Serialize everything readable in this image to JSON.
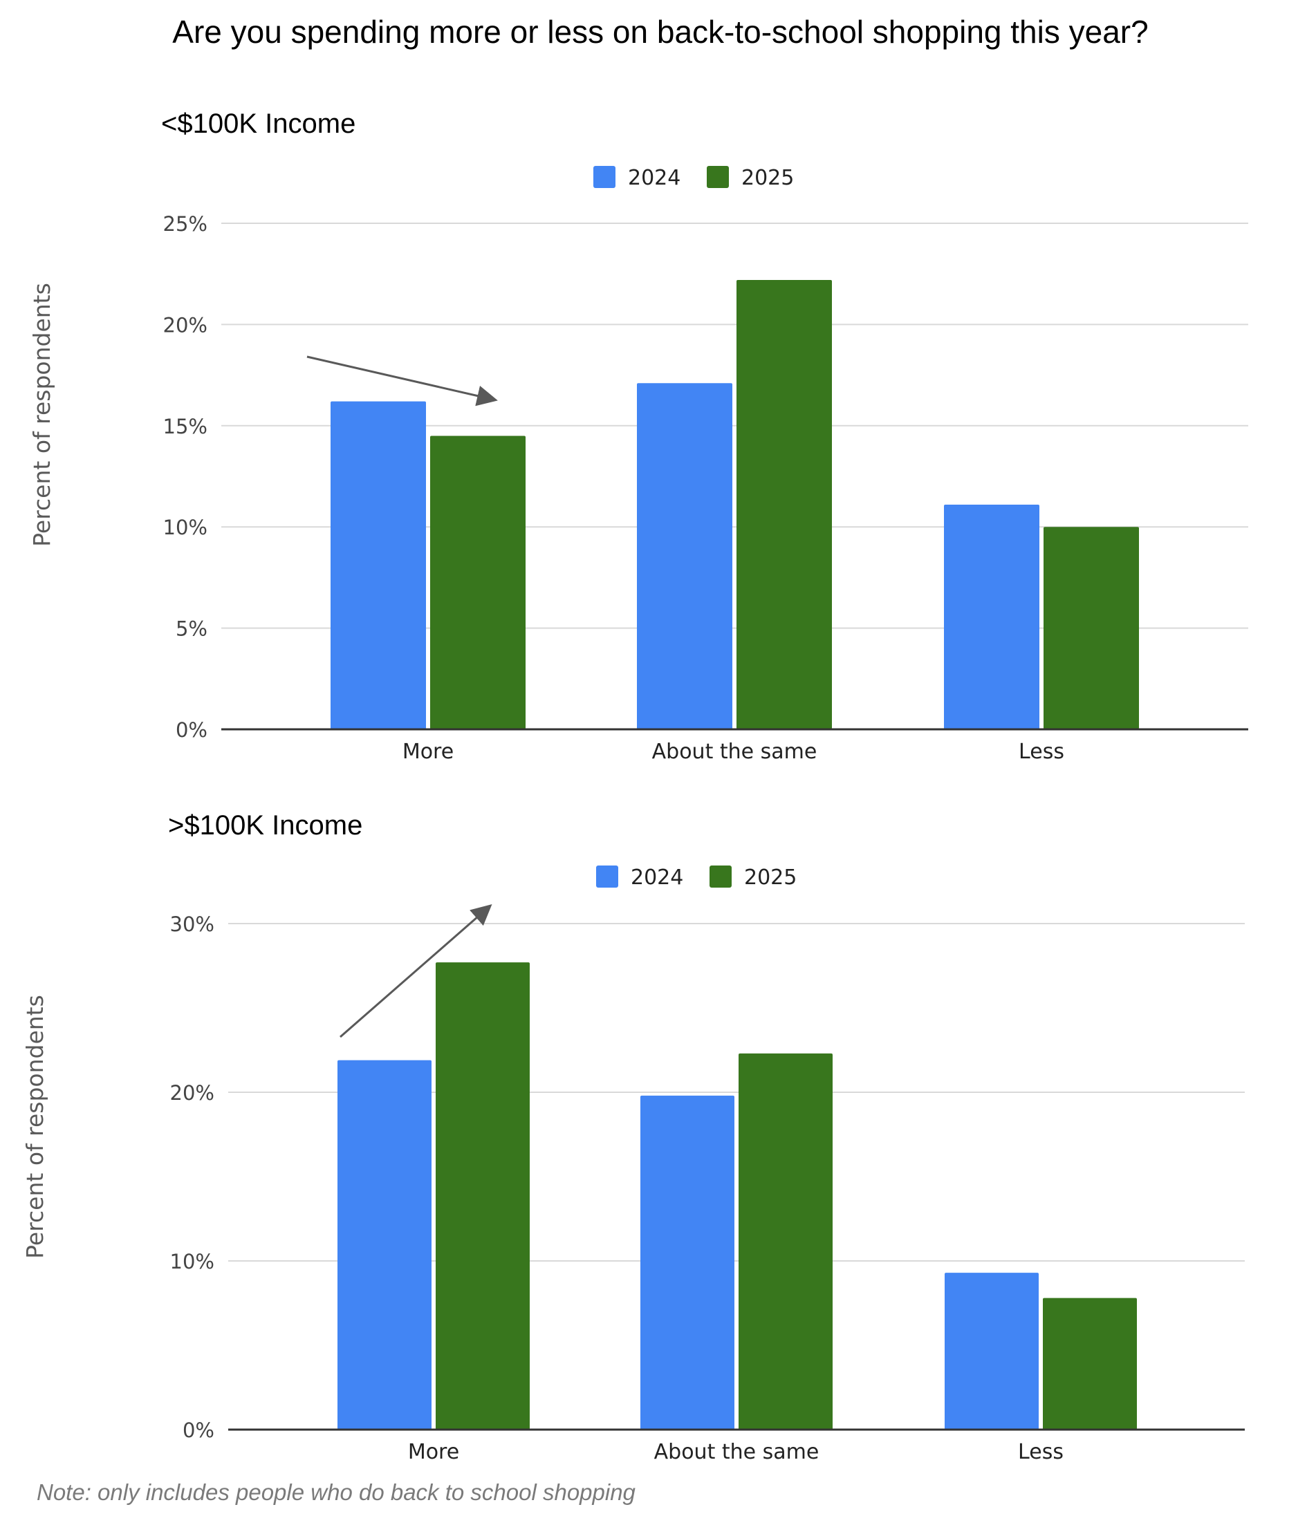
{
  "title": "Are you spending more or less on back-to-school shopping this year?",
  "note": "Note: only includes people who do back to school shopping",
  "colors": {
    "y2024": "#4285F4",
    "y2025": "#38761D",
    "grid": "#d9d9d9",
    "axis": "#333333",
    "arrow": "#595959",
    "tick": "#444444",
    "ylabel": "#595959"
  },
  "chart_data": [
    {
      "type": "bar",
      "title": "<$100K Income",
      "xlabel": "",
      "ylabel": "Percent of respondents",
      "categories": [
        "More",
        "About the same",
        "Less"
      ],
      "series": [
        {
          "name": "2024",
          "values": [
            16.2,
            17.1,
            11.1
          ]
        },
        {
          "name": "2025",
          "values": [
            14.5,
            22.2,
            10.0
          ]
        }
      ],
      "ylim": [
        0,
        25
      ],
      "yticks": [
        0,
        5,
        10,
        15,
        20,
        25
      ],
      "ytick_labels": [
        "0%",
        "5%",
        "10%",
        "15%",
        "20%",
        "25%"
      ],
      "grid": true,
      "legend": "top-center",
      "annotation": "down arrow over More",
      "arrow": "down"
    },
    {
      "type": "bar",
      "title": ">$100K Income",
      "xlabel": "",
      "ylabel": "Percent of respondents",
      "categories": [
        "More",
        "About the same",
        "Less"
      ],
      "series": [
        {
          "name": "2024",
          "values": [
            21.9,
            19.8,
            9.3
          ]
        },
        {
          "name": "2025",
          "values": [
            27.7,
            22.3,
            7.8
          ]
        }
      ],
      "ylim": [
        0,
        30
      ],
      "yticks": [
        0,
        10,
        20,
        30
      ],
      "ytick_labels": [
        "0%",
        "10%",
        "20%",
        "30%"
      ],
      "grid": true,
      "legend": "top-center",
      "annotation": "up arrow over More",
      "arrow": "up"
    }
  ]
}
